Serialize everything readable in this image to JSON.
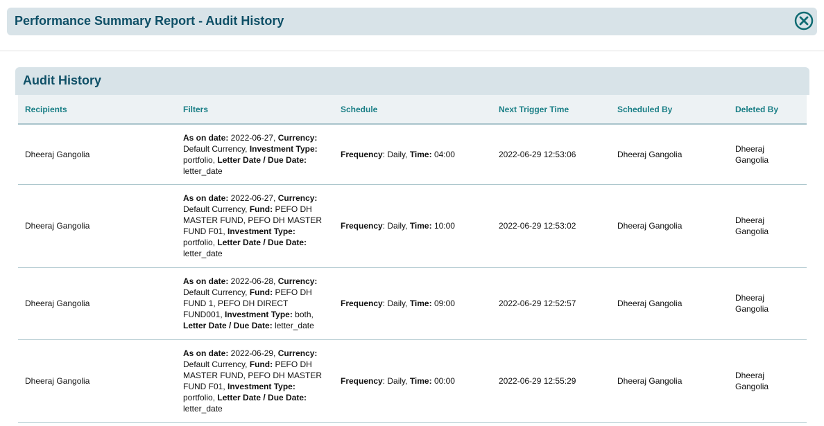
{
  "header": {
    "title": "Performance Summary Report - Audit History",
    "close_icon": "close-circle-icon"
  },
  "panel": {
    "title": "Audit History"
  },
  "colors": {
    "title": "#0e4f66",
    "header_text": "#1a7f86",
    "bar": "#d8e3e8"
  },
  "table": {
    "columns": [
      "Recipients",
      "Filters",
      "Schedule",
      "Next Trigger Time",
      "Scheduled By",
      "Deleted By"
    ],
    "rows": [
      {
        "recipients": "Dheeraj Gangolia",
        "filters": [
          {
            "b": "As on date:",
            "t": " 2022-06-27, "
          },
          {
            "b": "Currency:",
            "t": " Default Currency, "
          },
          {
            "b": "Investment Type:",
            "t": " portfolio, "
          },
          {
            "b": "Letter Date / Due Date:",
            "t": " letter_date"
          }
        ],
        "schedule": [
          {
            "b": "Frequency",
            "t": ": Daily, "
          },
          {
            "b": "Time:",
            "t": " 04:00"
          }
        ],
        "next_trigger": "2022-06-29 12:53:06",
        "scheduled_by": "Dheeraj Gangolia",
        "deleted_by": "Dheeraj Gangolia"
      },
      {
        "recipients": "Dheeraj Gangolia",
        "filters": [
          {
            "b": "As on date:",
            "t": " 2022-06-27, "
          },
          {
            "b": "Currency:",
            "t": " Default Currency, "
          },
          {
            "b": "Fund:",
            "t": " PEFO DH MASTER FUND, PEFO DH MASTER FUND F01, "
          },
          {
            "b": "Investment Type:",
            "t": " portfolio, "
          },
          {
            "b": "Letter Date / Due Date:",
            "t": " letter_date"
          }
        ],
        "schedule": [
          {
            "b": "Frequency",
            "t": ": Daily, "
          },
          {
            "b": "Time:",
            "t": " 10:00"
          }
        ],
        "next_trigger": "2022-06-29 12:53:02",
        "scheduled_by": "Dheeraj Gangolia",
        "deleted_by": "Dheeraj Gangolia"
      },
      {
        "recipients": "Dheeraj Gangolia",
        "filters": [
          {
            "b": "As on date:",
            "t": " 2022-06-28, "
          },
          {
            "b": "Currency:",
            "t": " Default Currency, "
          },
          {
            "b": "Fund:",
            "t": " PEFO DH FUND 1, PEFO DH DIRECT FUND001, "
          },
          {
            "b": "Investment Type:",
            "t": " both, "
          },
          {
            "b": "Letter Date / Due Date:",
            "t": " letter_date"
          }
        ],
        "schedule": [
          {
            "b": "Frequency",
            "t": ": Daily, "
          },
          {
            "b": "Time:",
            "t": " 09:00"
          }
        ],
        "next_trigger": "2022-06-29 12:52:57",
        "scheduled_by": "Dheeraj Gangolia",
        "deleted_by": "Dheeraj Gangolia"
      },
      {
        "recipients": "Dheeraj Gangolia",
        "filters": [
          {
            "b": "As on date:",
            "t": " 2022-06-29, "
          },
          {
            "b": "Currency:",
            "t": " Default Currency, "
          },
          {
            "b": "Fund:",
            "t": " PEFO DH MASTER FUND, PEFO DH MASTER FUND F01, "
          },
          {
            "b": "Investment Type:",
            "t": " portfolio, "
          },
          {
            "b": "Letter Date / Due Date:",
            "t": " letter_date"
          }
        ],
        "schedule": [
          {
            "b": "Frequency",
            "t": ": Daily, "
          },
          {
            "b": "Time:",
            "t": " 00:00"
          }
        ],
        "next_trigger": "2022-06-29 12:55:29",
        "scheduled_by": "Dheeraj Gangolia",
        "deleted_by": "Dheeraj Gangolia"
      }
    ]
  }
}
